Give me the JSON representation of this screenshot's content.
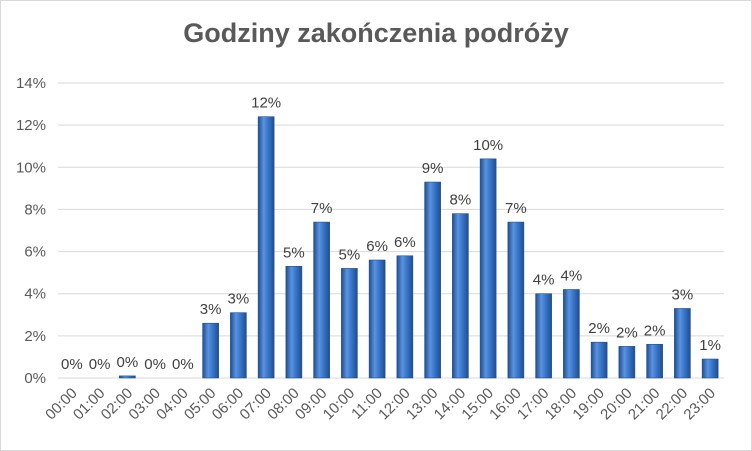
{
  "chart_data": {
    "type": "bar",
    "title": "Godziny zakończenia podróży",
    "xlabel": "",
    "ylabel": "",
    "ylim": [
      0,
      14
    ],
    "yticks": [
      "0%",
      "2%",
      "4%",
      "6%",
      "8%",
      "10%",
      "12%",
      "14%"
    ],
    "categories": [
      "00:00",
      "01:00",
      "02:00",
      "03:00",
      "04:00",
      "05:00",
      "06:00",
      "07:00",
      "08:00",
      "09:00",
      "10:00",
      "11:00",
      "12:00",
      "13:00",
      "14:00",
      "15:00",
      "16:00",
      "17:00",
      "18:00",
      "19:00",
      "20:00",
      "21:00",
      "22:00",
      "23:00"
    ],
    "values": [
      0,
      0,
      0.1,
      0,
      0,
      2.6,
      3.1,
      12.4,
      5.3,
      7.4,
      5.2,
      5.6,
      5.8,
      9.3,
      7.8,
      10.4,
      7.4,
      4.0,
      4.2,
      1.7,
      1.5,
      1.6,
      3.3,
      0.9
    ],
    "data_labels": [
      "0%",
      "0%",
      "0%",
      "0%",
      "0%",
      "3%",
      "3%",
      "12%",
      "5%",
      "7%",
      "5%",
      "6%",
      "6%",
      "9%",
      "8%",
      "10%",
      "7%",
      "4%",
      "4%",
      "2%",
      "2%",
      "2%",
      "3%",
      "1%"
    ],
    "grid": true,
    "legend": "none",
    "colors": {
      "bar": "#2f6fc6",
      "bar_dark": "#1f4e91",
      "bar_light": "#7fb0ee",
      "grid": "#d9d9d9",
      "text": "#595959"
    }
  }
}
